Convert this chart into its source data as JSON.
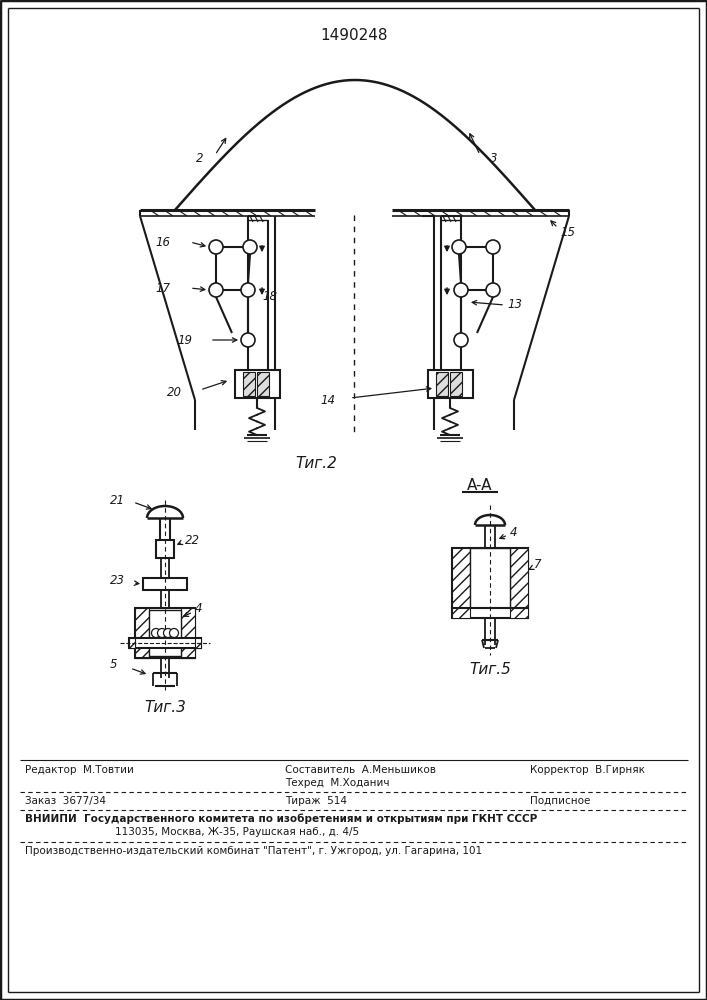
{
  "bg_color": "#ffffff",
  "line_color": "#1a1a1a",
  "patent_number": "1490248",
  "fig2_label": "Τиг.2",
  "fig3_label": "Τиг.3",
  "fig5_label": "Τиг.5",
  "aa_label": "A-A",
  "footer_line1_col1": "Редактор  М.Товтии",
  "footer_line1_col2": "Составитель  А.Меньшиков",
  "footer_line1_col3": "Корректор  В.Гирняк",
  "footer_line2_col2": "Техред  М.Ходанич",
  "footer_line3_col1": "Заказ  3677/34",
  "footer_line3_col2": "Тираж  514",
  "footer_line3_col3": "Подписное",
  "footer_vniipи": "ВНИИПИ  Государственного комитета по изобретениям и открытиям при ГКНТ СССР",
  "footer_address": "113035, Москва, Ж-35, Раушская наб., д. 4/5",
  "footer_patent": "Производственно-издательский комбинат \"Патент\", г. Ужгород, ул. Гагарина, 101"
}
